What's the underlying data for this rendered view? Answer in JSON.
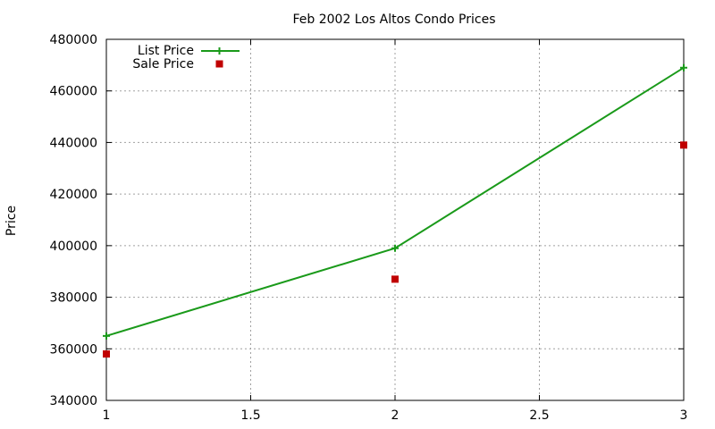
{
  "chart_data": {
    "type": "line",
    "title": "Feb 2002 Los Altos Condo Prices",
    "xlabel": "",
    "ylabel": "Price",
    "xlim": [
      1,
      3
    ],
    "ylim": [
      340000,
      480000
    ],
    "x_ticks": [
      "1",
      "1.5",
      "2",
      "2.5",
      "3"
    ],
    "y_ticks": [
      "340000",
      "360000",
      "380000",
      "400000",
      "420000",
      "440000",
      "460000",
      "480000"
    ],
    "grid": true,
    "legend_position": "top-left",
    "series": [
      {
        "name": "List Price",
        "style": "line-with-plus-markers",
        "color": "#1a9a1a",
        "x": [
          1,
          2,
          3
        ],
        "y": [
          365000,
          399000,
          469000
        ]
      },
      {
        "name": "Sale Price",
        "style": "square-markers",
        "color": "#c00000",
        "x": [
          1,
          2,
          3
        ],
        "y": [
          358000,
          387000,
          439000
        ]
      }
    ]
  }
}
